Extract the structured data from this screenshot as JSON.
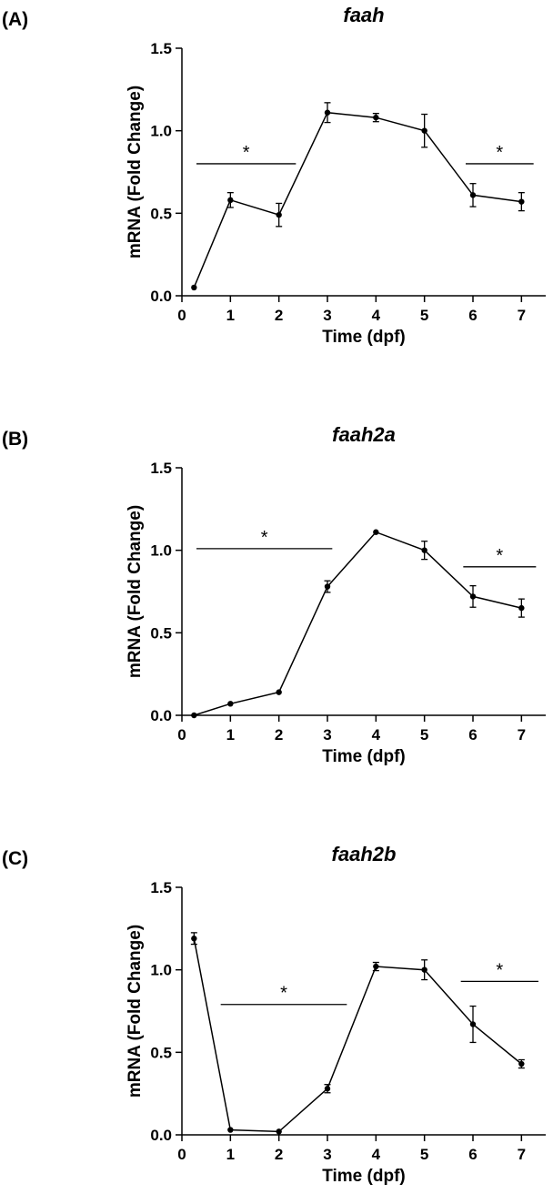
{
  "chart_data": [
    {
      "type": "line",
      "panel_label": "(A)",
      "title": "faah",
      "xlabel": "Time (dpf)",
      "ylabel": "mRNA (Fold Change)",
      "xlim": [
        0,
        7.5
      ],
      "ylim": [
        0,
        1.5
      ],
      "xticks": [
        0,
        1,
        2,
        3,
        4,
        5,
        6,
        7
      ],
      "yticks": [
        "0.0",
        "0.5",
        "1.0",
        "1.5"
      ],
      "grid": false,
      "series": [
        {
          "x": [
            0.25,
            1,
            2,
            3,
            4,
            5,
            6,
            7
          ],
          "y": [
            0.05,
            0.58,
            0.49,
            1.11,
            1.08,
            1.0,
            0.61,
            0.57
          ],
          "error": [
            0,
            0.045,
            0.07,
            0.06,
            0.025,
            0.1,
            0.07,
            0.055
          ]
        }
      ],
      "significance": [
        {
          "label": "*",
          "x_start": 0.3,
          "x_end": 2.35,
          "y": 0.8
        },
        {
          "label": "*",
          "x_start": 5.85,
          "x_end": 7.25,
          "y": 0.8
        }
      ],
      "color": "#000000"
    },
    {
      "type": "line",
      "panel_label": "(B)",
      "title": "faah2a",
      "xlabel": "Time (dpf)",
      "ylabel": "mRNA (Fold Change)",
      "xlim": [
        0,
        7.5
      ],
      "ylim": [
        0,
        1.5
      ],
      "xticks": [
        0,
        1,
        2,
        3,
        4,
        5,
        6,
        7
      ],
      "yticks": [
        "0.0",
        "0.5",
        "1.0",
        "1.5"
      ],
      "grid": false,
      "series": [
        {
          "x": [
            0.25,
            1,
            2,
            3,
            4,
            5,
            6,
            7
          ],
          "y": [
            0.0,
            0.07,
            0.14,
            0.78,
            1.11,
            1.0,
            0.72,
            0.65
          ],
          "error": [
            0,
            0,
            0,
            0.035,
            0,
            0.055,
            0.065,
            0.055
          ]
        }
      ],
      "significance": [
        {
          "label": "*",
          "x_start": 0.3,
          "x_end": 3.1,
          "y": 1.01
        },
        {
          "label": "*",
          "x_start": 5.8,
          "x_end": 7.3,
          "y": 0.9
        }
      ],
      "color": "#000000"
    },
    {
      "type": "line",
      "panel_label": "(C)",
      "title": "faah2b",
      "xlabel": "Time (dpf)",
      "ylabel": "mRNA (Fold Change)",
      "xlim": [
        0,
        7.5
      ],
      "ylim": [
        0,
        1.5
      ],
      "xticks": [
        0,
        1,
        2,
        3,
        4,
        5,
        6,
        7
      ],
      "yticks": [
        "0.0",
        "0.5",
        "1.0",
        "1.5"
      ],
      "grid": false,
      "series": [
        {
          "x": [
            0.25,
            1,
            2,
            3,
            4,
            5,
            6,
            7
          ],
          "y": [
            1.19,
            0.03,
            0.02,
            0.28,
            1.02,
            1.0,
            0.67,
            0.43
          ],
          "error": [
            0.035,
            0,
            0,
            0.025,
            0.025,
            0.06,
            0.11,
            0.025
          ]
        }
      ],
      "significance": [
        {
          "label": "*",
          "x_start": 0.8,
          "x_end": 3.4,
          "y": 0.79
        },
        {
          "label": "*",
          "x_start": 5.75,
          "x_end": 7.35,
          "y": 0.93
        }
      ],
      "color": "#000000"
    }
  ]
}
